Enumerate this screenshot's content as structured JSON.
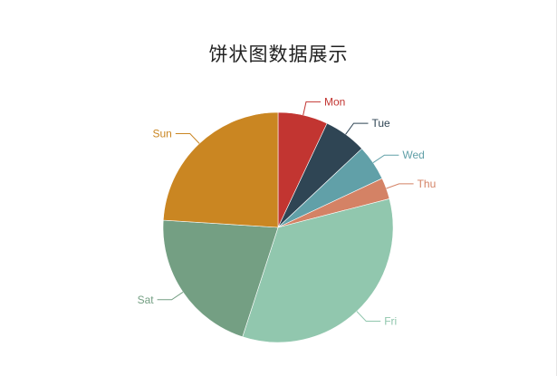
{
  "chart_data": {
    "type": "pie",
    "title": "饼状图数据展示",
    "slices": [
      {
        "label": "Mon",
        "value": 7,
        "color": "#c23531"
      },
      {
        "label": "Tue",
        "value": 6,
        "color": "#2f4554"
      },
      {
        "label": "Wed",
        "value": 5,
        "color": "#61a0a8"
      },
      {
        "label": "Thu",
        "value": 3,
        "color": "#d48265"
      },
      {
        "label": "Fri",
        "value": 34,
        "color": "#91c7ae"
      },
      {
        "label": "Sat",
        "value": 21,
        "color": "#749f83"
      },
      {
        "label": "Sun",
        "value": 24,
        "color": "#ca8622"
      }
    ],
    "start_angle": "top",
    "direction": "clockwise"
  }
}
